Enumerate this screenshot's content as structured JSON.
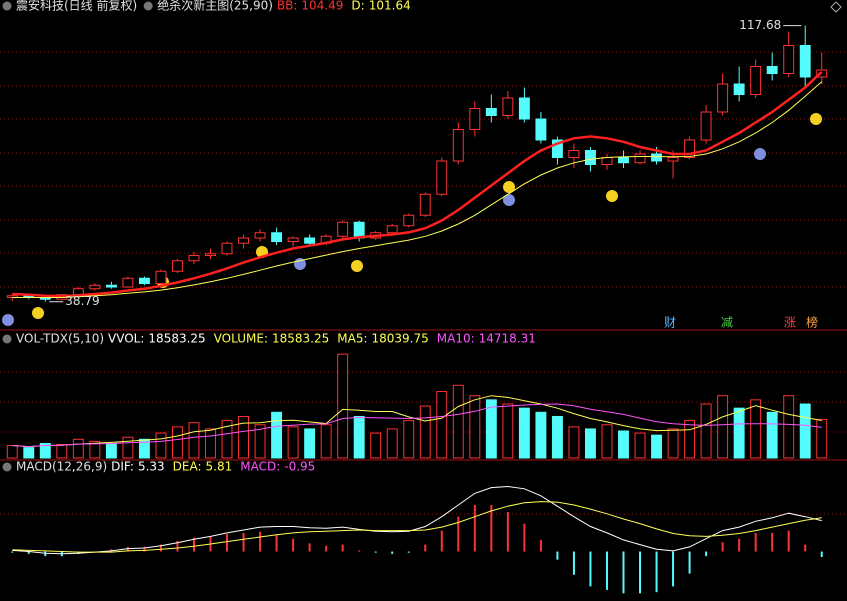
{
  "chart_data": [
    {
      "type": "candlestick",
      "title": "震安科技(日线 前复权)",
      "subtitle": "绝杀次新主图(25,90)",
      "readouts": [
        {
          "label": "BB:",
          "value": 104.49,
          "color": "#ff3232"
        },
        {
          "label": "D:",
          "value": 101.64,
          "color": "#ffff54"
        }
      ],
      "up_color": "#ff3232",
      "down_color": "#54fcfc",
      "ylim": [
        33,
        121
      ],
      "ohlc": [
        [
          40,
          41,
          39,
          40.5
        ],
        [
          40.5,
          41,
          39.5,
          40
        ],
        [
          40,
          40.5,
          38.79,
          39.5
        ],
        [
          39.5,
          41,
          39.2,
          40.8
        ],
        [
          40.8,
          43,
          40.5,
          42.5
        ],
        [
          42.5,
          44,
          42,
          43.5
        ],
        [
          43.5,
          44.5,
          42.5,
          43
        ],
        [
          43,
          46,
          42.8,
          45.5
        ],
        [
          45.5,
          46,
          43.5,
          44
        ],
        [
          44,
          48,
          43.8,
          47.5
        ],
        [
          47.5,
          51,
          47,
          50.5
        ],
        [
          50.5,
          53,
          49.5,
          52
        ],
        [
          52,
          54,
          51,
          52.5
        ],
        [
          52.5,
          56,
          52,
          55.5
        ],
        [
          55.5,
          58,
          54,
          57
        ],
        [
          57,
          59.5,
          56,
          58.5
        ],
        [
          58.5,
          60,
          55,
          56
        ],
        [
          56,
          57.5,
          54.5,
          57
        ],
        [
          57,
          58,
          55,
          55.5
        ],
        [
          55.5,
          58,
          55,
          57.5
        ],
        [
          57.5,
          62,
          57,
          61.5
        ],
        [
          61.5,
          62,
          56,
          57
        ],
        [
          57,
          59,
          56.5,
          58.5
        ],
        [
          58.5,
          61,
          58,
          60.5
        ],
        [
          60.5,
          64,
          60,
          63.5
        ],
        [
          63.5,
          70,
          63,
          69.5
        ],
        [
          69.5,
          80,
          69,
          79
        ],
        [
          79,
          90,
          78,
          88
        ],
        [
          88,
          96,
          86,
          94
        ],
        [
          94,
          98,
          90,
          92
        ],
        [
          92,
          99,
          91,
          97
        ],
        [
          97,
          100,
          90,
          91
        ],
        [
          91,
          93,
          84,
          85
        ],
        [
          85,
          86,
          78,
          80
        ],
        [
          80,
          84,
          77,
          82
        ],
        [
          82,
          83,
          76,
          78
        ],
        [
          78,
          81,
          76.5,
          80
        ],
        [
          80,
          82,
          77,
          78.5
        ],
        [
          78.5,
          82,
          78,
          81
        ],
        [
          81,
          83,
          78,
          79
        ],
        [
          79,
          82,
          74,
          80
        ],
        [
          80,
          86,
          79.5,
          85
        ],
        [
          85,
          95,
          84,
          93
        ],
        [
          93,
          104,
          92,
          101
        ],
        [
          101,
          106,
          96,
          98
        ],
        [
          98,
          108,
          97,
          106
        ],
        [
          106,
          110,
          102,
          104
        ],
        [
          104,
          116,
          103,
          112
        ],
        [
          112,
          117.68,
          100,
          103
        ],
        [
          103,
          110,
          101,
          105
        ]
      ],
      "series": [
        {
          "color": "#ff2020",
          "width": 2.5,
          "values": [
            41,
            40.8,
            40.5,
            40.4,
            40.6,
            41,
            41.4,
            42,
            42.5,
            43.3,
            44.3,
            45.5,
            46.8,
            48.3,
            50,
            51.5,
            52.8,
            54,
            54.8,
            55.6,
            56.6,
            57.2,
            57.6,
            58,
            58.6,
            59.8,
            62,
            65,
            68.5,
            72,
            75.5,
            79,
            82,
            84,
            85.5,
            86,
            85.5,
            84.5,
            83,
            82,
            81,
            81,
            82,
            84.5,
            87,
            90,
            93,
            96.5,
            100,
            104.49
          ]
        },
        {
          "color": "#ffff54",
          "width": 1,
          "values": [
            40,
            40,
            40,
            40,
            40.2,
            40.5,
            40.8,
            41.2,
            41.6,
            42.1,
            42.8,
            43.6,
            44.5,
            45.5,
            46.6,
            47.8,
            49,
            50.1,
            51.1,
            52.1,
            53.1,
            54,
            54.8,
            55.6,
            56.4,
            57.5,
            59,
            61,
            63.5,
            66.5,
            69.5,
            72.5,
            75,
            77,
            78.5,
            79.5,
            80,
            80.2,
            80.3,
            80.3,
            80.2,
            80.3,
            81,
            82.5,
            84.5,
            87,
            90,
            93.5,
            97.5,
            101.64
          ]
        }
      ],
      "markers": [
        {
          "text": "财",
          "color": "#5ab4ff"
        },
        {
          "text": "减",
          "color": "#40d040"
        },
        {
          "text": "涨",
          "color": "#ff4040"
        },
        {
          "text": "榜",
          "color": "#ffa040"
        }
      ]
    },
    {
      "type": "bar",
      "title": "VOL-TDX(5,10)",
      "readouts": [
        {
          "label": "VVOL:",
          "value": 18583.25,
          "color": "#ffffff"
        },
        {
          "label": "VOLUME:",
          "value": 18583.25,
          "color": "#ffff54"
        },
        {
          "label": "MA5:",
          "value": 18039.75,
          "color": "#ffff54"
        },
        {
          "label": "MA10:",
          "value": 14718.31,
          "color": "#ff54ff"
        }
      ],
      "ylim": [
        0,
        52000
      ],
      "values": [
        6000,
        5000,
        7000,
        6500,
        9000,
        8000,
        7000,
        10000,
        9000,
        12000,
        15000,
        17000,
        14000,
        18000,
        20000,
        16000,
        22000,
        15000,
        14000,
        16000,
        50000,
        20000,
        12000,
        14000,
        18000,
        25000,
        32000,
        35000,
        30000,
        28000,
        26000,
        24000,
        22000,
        20000,
        15000,
        14000,
        16000,
        13000,
        12000,
        11000,
        14000,
        18000,
        26000,
        30000,
        24000,
        28000,
        22000,
        30000,
        26000,
        18583.25
      ],
      "series": [
        {
          "color": "#ffff54",
          "values": [
            6000,
            5500,
            6000,
            6100,
            6700,
            7100,
            7500,
            8100,
            8600,
            9200,
            10600,
            12600,
            13400,
            15200,
            16800,
            17000,
            18000,
            18200,
            17400,
            16600,
            23400,
            23000,
            22400,
            22400,
            19800,
            17800,
            19200,
            24800,
            28000,
            30000,
            29200,
            27600,
            26000,
            24000,
            21400,
            19000,
            17400,
            15600,
            14000,
            13200,
            13400,
            13600,
            16200,
            19800,
            22400,
            25200,
            23000,
            21000,
            19500,
            18039.75
          ]
        },
        {
          "color": "#ff54ff",
          "values": [
            6000,
            5500,
            6000,
            6100,
            6700,
            6800,
            7000,
            7300,
            7600,
            8000,
            8900,
            10000,
            10600,
            11700,
            12800,
            13800,
            15300,
            15800,
            16300,
            16400,
            19000,
            19500,
            19400,
            19200,
            19000,
            19300,
            20000,
            21000,
            22500,
            24500,
            25000,
            25500,
            25800,
            26000,
            25200,
            23500,
            22300,
            21000,
            19200,
            17500,
            16500,
            16000,
            15700,
            16000,
            16400,
            16500,
            16400,
            16200,
            15800,
            14718.31
          ]
        }
      ]
    },
    {
      "type": "macd",
      "title": "MACD(12,26,9)",
      "readouts": [
        {
          "label": "DIF:",
          "value": 5.33,
          "color": "#ffffff"
        },
        {
          "label": "DEA:",
          "value": 5.81,
          "color": "#ffff54"
        },
        {
          "label": "MACD:",
          "value": -0.95,
          "color": "#ff54ff"
        }
      ],
      "ylim": [
        -8,
        13
      ],
      "values": [
        -0.2,
        -0.4,
        -0.8,
        -0.8,
        -0.4,
        0,
        0.4,
        0.8,
        0.8,
        1.2,
        1.8,
        2.4,
        2.6,
        3,
        3.2,
        3.4,
        2.8,
        2.2,
        1.4,
        1,
        1.2,
        0.2,
        -0.2,
        -0.4,
        -0.2,
        1.2,
        3.6,
        6,
        8,
        8,
        6.8,
        4.8,
        2,
        -1.4,
        -4,
        -6,
        -6.6,
        -7.2,
        -7.2,
        -7,
        -6,
        -3.8,
        -0.8,
        1.6,
        2.2,
        3.2,
        3.2,
        3.6,
        1.2,
        -0.95
      ],
      "series": [
        {
          "color": "#ffffff",
          "values": [
            0.2,
            0,
            -0.3,
            -0.4,
            -0.3,
            -0.1,
            0.1,
            0.5,
            0.6,
            1,
            1.5,
            2.1,
            2.6,
            3.2,
            3.7,
            4.2,
            4.3,
            4.3,
            4.1,
            4,
            4.2,
            3.8,
            3.5,
            3.4,
            3.5,
            4.3,
            6,
            8,
            10,
            11,
            11.2,
            10.8,
            9.6,
            7.8,
            6,
            4.3,
            3.2,
            2,
            1.2,
            0.4,
            0.1,
            0.8,
            2.2,
            3.6,
            4.2,
            5.2,
            5.8,
            6.6,
            6,
            5.33
          ]
        },
        {
          "color": "#ffff54",
          "values": [
            0.3,
            0.2,
            0.1,
            0,
            -0.1,
            -0.1,
            -0.1,
            0.1,
            0.2,
            0.4,
            0.6,
            0.9,
            1.3,
            1.7,
            2.1,
            2.5,
            2.9,
            3.2,
            3.4,
            3.5,
            3.6,
            3.7,
            3.6,
            3.6,
            3.6,
            3.7,
            4.2,
            5,
            6,
            7,
            7.8,
            8.4,
            8.6,
            8.5,
            8,
            7.3,
            6.5,
            5.6,
            4.8,
            3.9,
            3.1,
            2.7,
            2.6,
            2.8,
            3.1,
            3.6,
            4.2,
            4.8,
            5.4,
            5.81
          ]
        }
      ]
    }
  ]
}
